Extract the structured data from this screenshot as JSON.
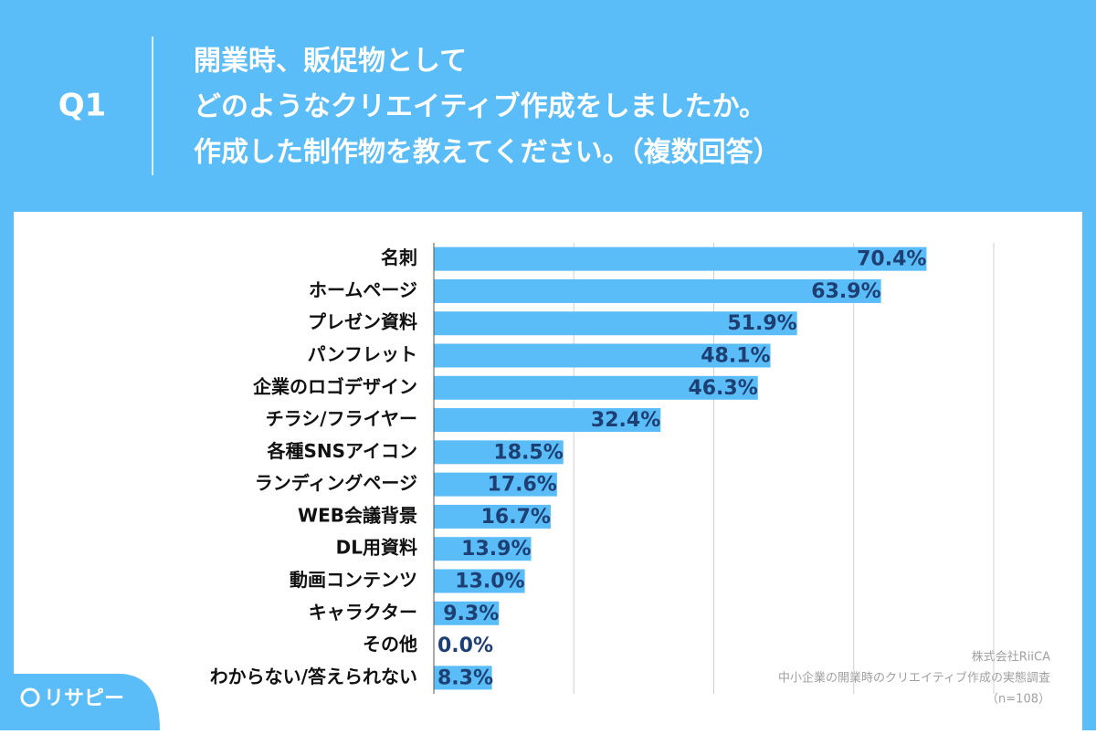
{
  "header": {
    "question": "Q1",
    "title_lines": [
      "開業時、販促物として",
      "どのようなクリエイティブ作成をしましたか。",
      "作成した制作物を教えてください。（複数回答）"
    ]
  },
  "chart_data": {
    "type": "bar",
    "orientation": "horizontal",
    "categories": [
      "名刺",
      "ホームページ",
      "プレゼン資料",
      "パンフレット",
      "企業のロゴデザイン",
      "チラシ/フライヤー",
      "各種SNSアイコン",
      "ランディングページ",
      "WEB会議背景",
      "DL用資料",
      "動画コンテンツ",
      "キャラクター",
      "その他",
      "わからない/答えられない"
    ],
    "values": [
      70.4,
      63.9,
      51.9,
      48.1,
      46.3,
      32.4,
      18.5,
      17.6,
      16.7,
      13.9,
      13.0,
      9.3,
      0.0,
      8.3
    ],
    "value_labels": [
      "70.4%",
      "63.9%",
      "51.9%",
      "48.1%",
      "46.3%",
      "32.4%",
      "18.5%",
      "17.6%",
      "16.7%",
      "13.9%",
      "13.0%",
      "9.3%",
      "0.0%",
      "8.3%"
    ],
    "color": "#5bbdf8",
    "label_color": "#1d3f73",
    "xlim": [
      0,
      80
    ],
    "xticks": [
      0,
      20,
      40,
      60,
      80
    ],
    "grid": true
  },
  "footer": {
    "source_lines": [
      "株式会社RiiCA",
      "中小企業の開業時のクリエイティブ作成の実態調査",
      "（n=108）"
    ]
  },
  "logo": {
    "text": "リサピー"
  }
}
